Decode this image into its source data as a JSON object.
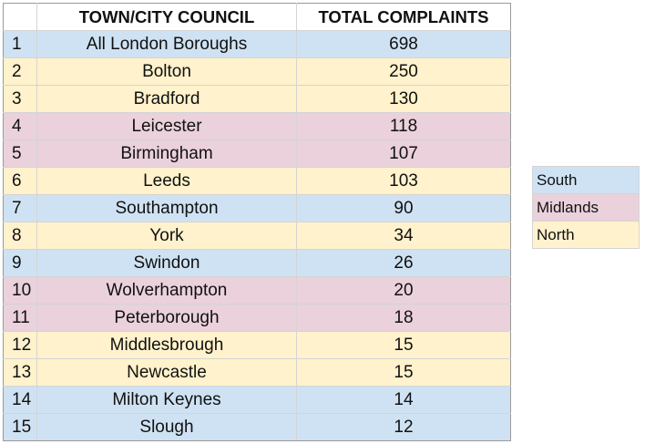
{
  "chart_data": {
    "type": "table",
    "columns": [
      "",
      "TOWN/CITY COUNCIL",
      "TOTAL COMPLAINTS"
    ],
    "rows": [
      {
        "rank": "1",
        "council": "All London Boroughs",
        "complaints": "698",
        "region": "South"
      },
      {
        "rank": "2",
        "council": "Bolton",
        "complaints": "250",
        "region": "North"
      },
      {
        "rank": "3",
        "council": "Bradford",
        "complaints": "130",
        "region": "North"
      },
      {
        "rank": "4",
        "council": "Leicester",
        "complaints": "118",
        "region": "Midlands"
      },
      {
        "rank": "5",
        "council": "Birmingham",
        "complaints": "107",
        "region": "Midlands"
      },
      {
        "rank": "6",
        "council": "Leeds",
        "complaints": "103",
        "region": "North"
      },
      {
        "rank": "7",
        "council": "Southampton",
        "complaints": "90",
        "region": "South"
      },
      {
        "rank": "8",
        "council": "York",
        "complaints": "34",
        "region": "North"
      },
      {
        "rank": "9",
        "council": "Swindon",
        "complaints": "26",
        "region": "South"
      },
      {
        "rank": "10",
        "council": "Wolverhampton",
        "complaints": "20",
        "region": "Midlands"
      },
      {
        "rank": "11",
        "council": "Peterborough",
        "complaints": "18",
        "region": "Midlands"
      },
      {
        "rank": "12",
        "council": "Middlesbrough",
        "complaints": "15",
        "region": "North"
      },
      {
        "rank": "13",
        "council": "Newcastle",
        "complaints": "15",
        "region": "North"
      },
      {
        "rank": "14",
        "council": "Milton Keynes",
        "complaints": "14",
        "region": "South"
      },
      {
        "rank": "15",
        "council": "Slough",
        "complaints": "12",
        "region": "South"
      }
    ],
    "legend": [
      {
        "label": "South",
        "color": "#cfe2f3"
      },
      {
        "label": "Midlands",
        "color": "#ead1dc"
      },
      {
        "label": "North",
        "color": "#fff2cc"
      }
    ]
  }
}
